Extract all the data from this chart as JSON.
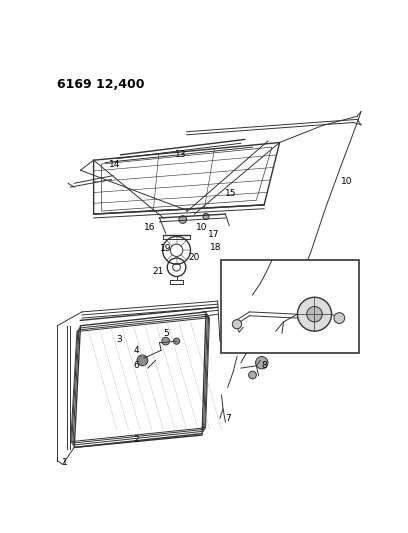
{
  "title": "6169 12,400",
  "bg_color": "#ffffff",
  "fig_width": 4.08,
  "fig_height": 5.33,
  "dpi": 100,
  "line_color": "#333333",
  "label_fontsize": 6.5,
  "title_fontsize": 9
}
